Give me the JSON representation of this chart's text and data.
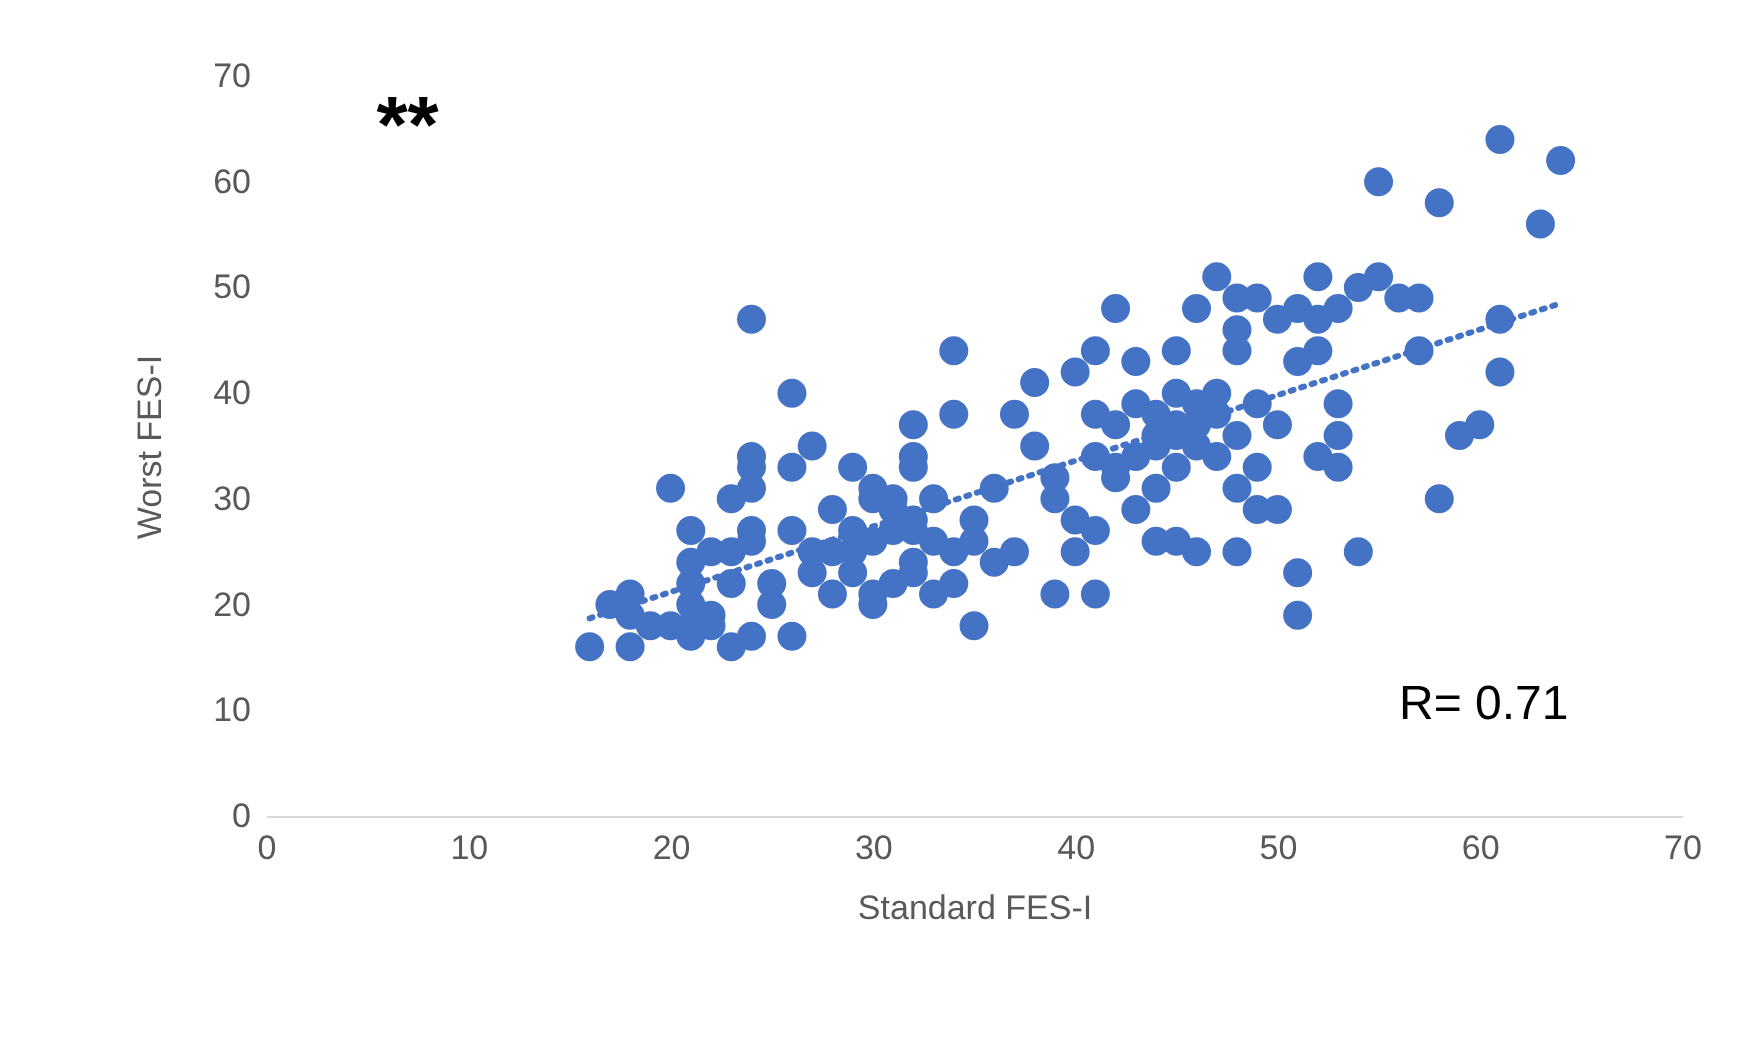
{
  "chart_data": {
    "type": "scatter",
    "xlabel": "Standard FES-I",
    "ylabel": "Worst FES-I",
    "xlim": [
      0,
      70
    ],
    "ylim": [
      0,
      70
    ],
    "xticks": [
      0,
      10,
      20,
      30,
      40,
      50,
      60,
      70
    ],
    "yticks": [
      0,
      10,
      20,
      30,
      40,
      50,
      60,
      70
    ],
    "marker": "circle",
    "annotations": [
      "**",
      "R= 0.71"
    ],
    "series": [
      {
        "color": "#4472c4",
        "x": [
          16,
          17,
          18,
          18,
          18,
          19,
          20,
          20,
          21,
          21,
          21,
          21,
          21,
          21,
          22,
          22,
          22,
          23,
          23,
          23,
          23,
          24,
          24,
          24,
          24,
          24,
          24,
          24,
          25,
          25,
          26,
          26,
          26,
          26,
          27,
          27,
          27,
          28,
          28,
          28,
          29,
          29,
          29,
          29,
          30,
          30,
          30,
          30,
          30,
          31,
          31,
          31,
          31,
          32,
          32,
          32,
          32,
          32,
          32,
          32,
          33,
          33,
          33,
          34,
          34,
          34,
          34,
          35,
          35,
          35,
          36,
          36,
          37,
          37,
          38,
          38,
          39,
          39,
          39,
          40,
          40,
          40,
          41,
          41,
          41,
          41,
          41,
          42,
          42,
          42,
          42,
          43,
          43,
          43,
          43,
          44,
          44,
          44,
          44,
          44,
          45,
          45,
          45,
          45,
          45,
          45,
          46,
          46,
          46,
          46,
          46,
          47,
          47,
          47,
          47,
          48,
          48,
          48,
          48,
          48,
          48,
          49,
          49,
          49,
          49,
          50,
          50,
          50,
          51,
          51,
          51,
          51,
          52,
          52,
          52,
          52,
          53,
          53,
          53,
          53,
          54,
          54,
          55,
          55,
          56,
          57,
          57,
          58,
          58,
          59,
          60,
          61,
          61,
          61,
          63,
          64
        ],
        "values": [
          16,
          20,
          21,
          16,
          19,
          18,
          31,
          18,
          27,
          24,
          22,
          20,
          18,
          17,
          25,
          19,
          18,
          30,
          25,
          22,
          16,
          47,
          34,
          33,
          31,
          27,
          26,
          17,
          22,
          20,
          40,
          33,
          27,
          17,
          35,
          25,
          23,
          29,
          25,
          21,
          33,
          27,
          25,
          23,
          31,
          30,
          26,
          21,
          20,
          30,
          29,
          27,
          22,
          37,
          34,
          33,
          28,
          27,
          24,
          23,
          30,
          26,
          21,
          44,
          38,
          25,
          22,
          28,
          26,
          18,
          31,
          24,
          38,
          25,
          41,
          35,
          32,
          30,
          21,
          42,
          28,
          25,
          44,
          38,
          34,
          27,
          21,
          48,
          37,
          33,
          32,
          43,
          39,
          34,
          29,
          38,
          36,
          35,
          31,
          26,
          44,
          40,
          37,
          36,
          33,
          26,
          48,
          39,
          37,
          35,
          25,
          51,
          40,
          38,
          34,
          49,
          46,
          44,
          36,
          31,
          25,
          49,
          39,
          33,
          29,
          47,
          37,
          29,
          48,
          43,
          23,
          19,
          51,
          47,
          44,
          34,
          48,
          39,
          36,
          33,
          50,
          25,
          60,
          51,
          49,
          49,
          44,
          58,
          30,
          36,
          37,
          64,
          47,
          42,
          56,
          62
        ]
      },
      {
        "type": "line",
        "color": "#4472c4",
        "line_style": "dotted",
        "marker": "none",
        "x": [
          16,
          64
        ],
        "values": [
          18.7,
          48.5
        ]
      }
    ]
  }
}
